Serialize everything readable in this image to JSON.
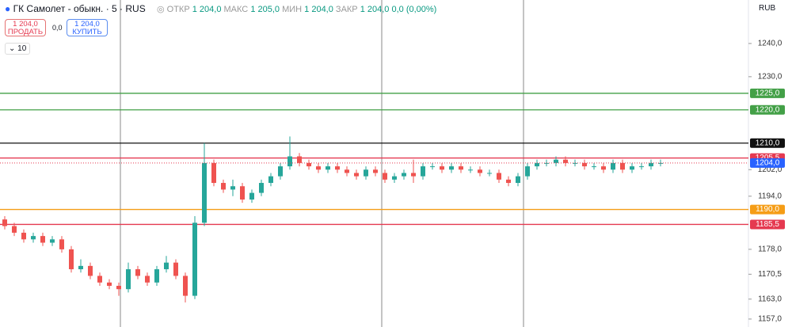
{
  "header": {
    "symbol": "ГК Самолет - обыкн. · 5 · RUS",
    "open_label": "ОТКР",
    "open": "1 204,0",
    "high_label": "МАКС",
    "high": "1 205,0",
    "low_label": "МИН",
    "low": "1 204,0",
    "close_label": "ЗАКР",
    "close": "1 204,0",
    "change": "0,0 (0,00%)",
    "currency": "RUB"
  },
  "trade": {
    "sell_price": "1 204,0",
    "sell_label": "ПРОДАТЬ",
    "spread": "0,0",
    "buy_price": "1 204,0",
    "buy_label": "КУПИТЬ",
    "indicators": "10"
  },
  "chart_data": {
    "type": "candlestick",
    "ylim": [
      1154.6,
      1253.1
    ],
    "yticks": [
      {
        "value": 1157,
        "label": "1157,0"
      },
      {
        "value": 1163,
        "label": "1163,0"
      },
      {
        "value": 1170.5,
        "label": "1170,5"
      },
      {
        "value": 1178,
        "label": "1178,0"
      },
      {
        "value": 1194,
        "label": "1194,0"
      },
      {
        "value": 1202,
        "label": "1202,0"
      },
      {
        "value": 1230,
        "label": "1230,0"
      },
      {
        "value": 1240,
        "label": "1240,0"
      }
    ],
    "open": [
      1187,
      1185,
      1183,
      1181,
      1182,
      1180,
      1181,
      1178,
      1172,
      1173,
      1170,
      1168,
      1167,
      1166,
      1172,
      1170,
      1168,
      1172,
      1174,
      1170,
      1164,
      1186,
      1204,
      1198,
      1196,
      1197,
      1193,
      1195,
      1198,
      1200,
      1203,
      1206,
      1204,
      1203,
      1202,
      1203,
      1202,
      1201,
      1200,
      1202,
      1201,
      1199,
      1200,
      1201,
      1200,
      1203,
      1203,
      1202,
      1203,
      1202,
      1202,
      1201,
      1201,
      1199,
      1198,
      1200,
      1203,
      1204,
      1204,
      1205,
      1204,
      1204,
      1203,
      1203,
      1202,
      1204,
      1202,
      1203,
      1203,
      1204
    ],
    "high": [
      1188,
      1186,
      1184,
      1183,
      1183,
      1182,
      1182,
      1179,
      1175,
      1174,
      1171,
      1169,
      1168,
      1174,
      1173,
      1171,
      1173,
      1176,
      1175,
      1171,
      1188,
      1210,
      1205,
      1199,
      1199,
      1198,
      1196,
      1199,
      1201,
      1204,
      1212,
      1207,
      1205,
      1204,
      1204,
      1204,
      1203,
      1202,
      1203,
      1203,
      1202,
      1201,
      1202,
      1205,
      1204,
      1204,
      1204,
      1204,
      1204,
      1203,
      1203,
      1202,
      1202,
      1200,
      1201,
      1204,
      1205,
      1205,
      1206,
      1206,
      1205,
      1205,
      1204,
      1204,
      1205,
      1205,
      1204,
      1204,
      1205,
      1205
    ],
    "low": [
      1184,
      1182,
      1180,
      1180,
      1179,
      1179,
      1177,
      1171,
      1171,
      1169,
      1167,
      1166,
      1164,
      1165,
      1169,
      1167,
      1167,
      1171,
      1169,
      1162,
      1163,
      1185,
      1197,
      1195,
      1194,
      1192,
      1192,
      1194,
      1197,
      1199,
      1202,
      1203,
      1202,
      1201,
      1201,
      1201,
      1200,
      1199,
      1199,
      1200,
      1198,
      1198,
      1199,
      1198,
      1199,
      1202,
      1201,
      1201,
      1201,
      1201,
      1200,
      1200,
      1198,
      1197,
      1197,
      1199,
      1202,
      1203,
      1203,
      1203,
      1203,
      1202,
      1202,
      1201,
      1201,
      1201,
      1201,
      1202,
      1202,
      1203
    ],
    "close": [
      1185,
      1183,
      1181,
      1182,
      1180,
      1181,
      1178,
      1172,
      1173,
      1170,
      1168,
      1167,
      1166,
      1172,
      1170,
      1168,
      1172,
      1174,
      1170,
      1164,
      1186,
      1204,
      1198,
      1196,
      1197,
      1193,
      1195,
      1198,
      1200,
      1203,
      1206,
      1204,
      1203,
      1202,
      1203,
      1202,
      1201,
      1200,
      1202,
      1201,
      1199,
      1200,
      1201,
      1200,
      1203,
      1203,
      1202,
      1203,
      1202,
      1202,
      1201,
      1201,
      1199,
      1198,
      1200,
      1203,
      1204,
      1204,
      1205,
      1204,
      1204,
      1203,
      1203,
      1202,
      1204,
      1202,
      1203,
      1203,
      1204,
      1204
    ],
    "up_color": "#26a69a",
    "down_color": "#ef5350",
    "levels": [
      {
        "value": 1225,
        "label": "1225,0",
        "color": "#43a047"
      },
      {
        "value": 1220,
        "label": "1220,0",
        "color": "#43a047"
      },
      {
        "value": 1210,
        "label": "1210,0",
        "color": "#111111"
      },
      {
        "value": 1205.5,
        "label": "1205,5",
        "color": "#e53950"
      },
      {
        "value": 1190,
        "label": "1190,0",
        "color": "#f59d16"
      },
      {
        "value": 1185.5,
        "label": "1185,5",
        "color": "#e53950"
      }
    ],
    "last_price": {
      "value": 1204,
      "label": "1204,0",
      "color": "#2962ff"
    }
  }
}
